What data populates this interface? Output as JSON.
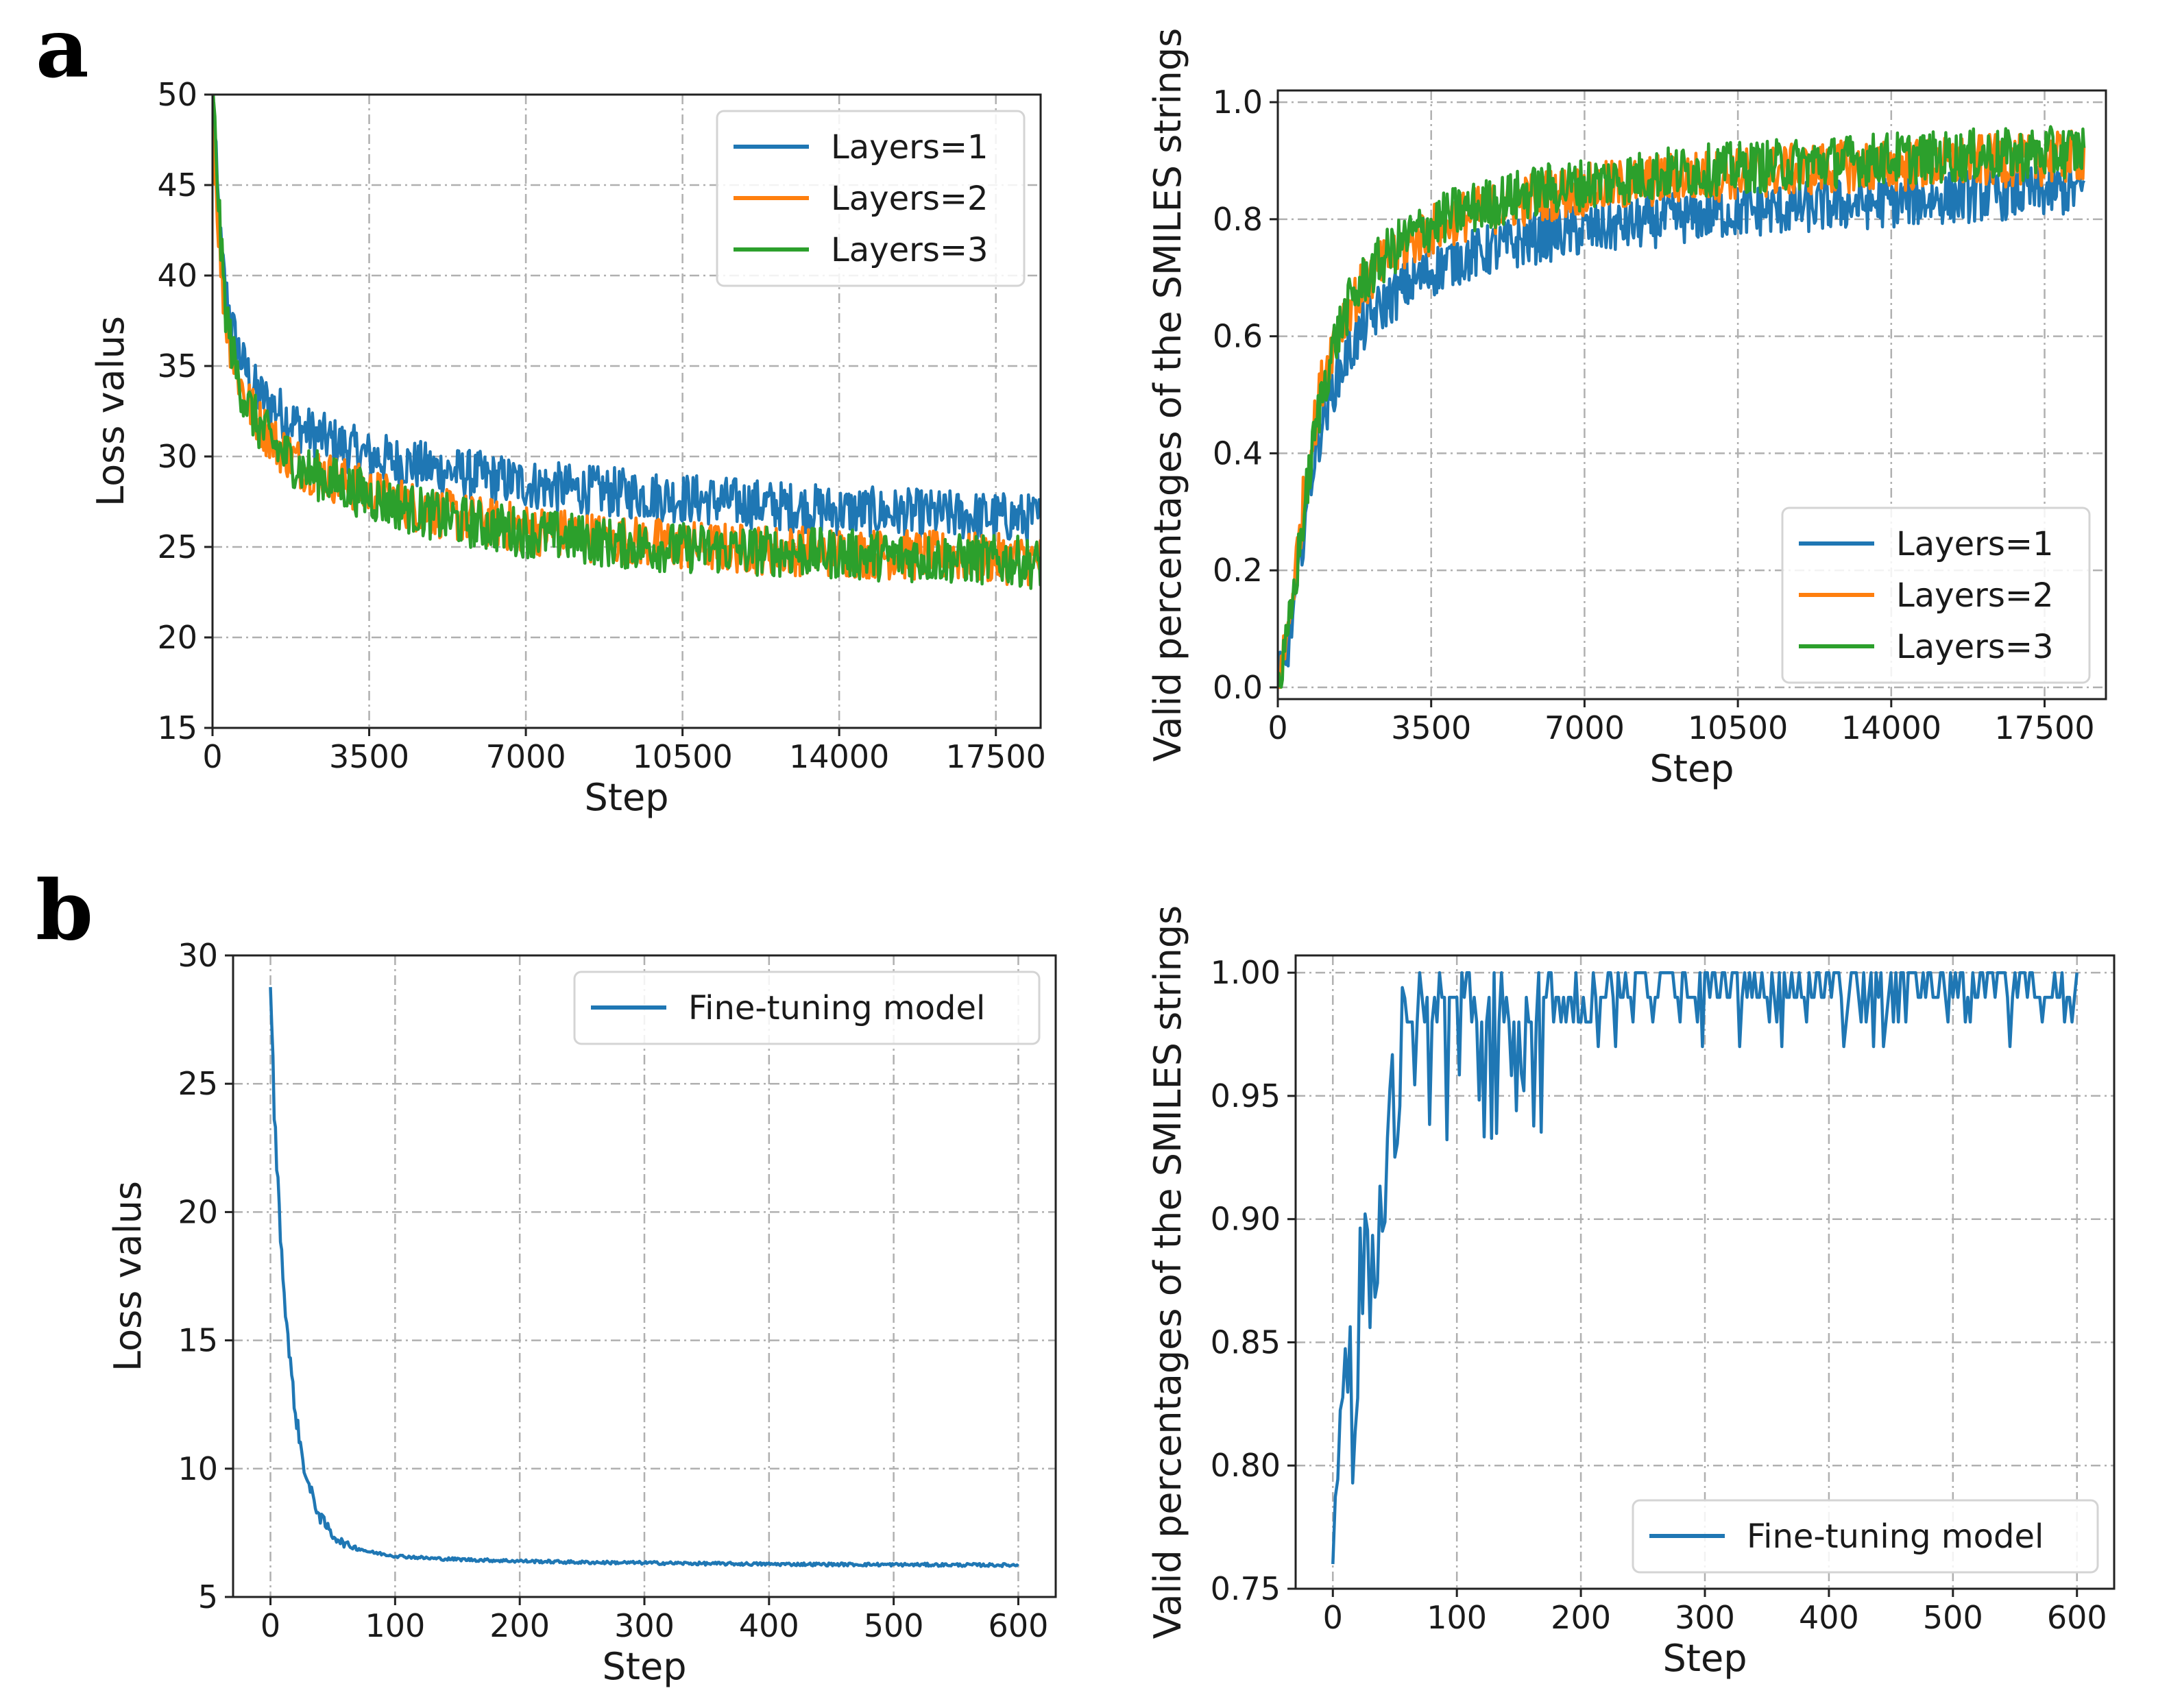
{
  "colors": {
    "layers1": "#1f77b4",
    "layers2": "#ff7f0e",
    "layers3": "#2ca02c",
    "finetune": "#1f77b4"
  },
  "panel_labels": {
    "a": "a",
    "b": "b"
  },
  "chart_data": [
    {
      "id": "a-loss",
      "type": "line",
      "title": "",
      "xlabel": "Step",
      "ylabel": "Loss valus",
      "xlim": [
        0,
        18500
      ],
      "ylim": [
        15,
        50
      ],
      "xticks": [
        0,
        3500,
        7000,
        10500,
        14000,
        17500
      ],
      "yticks": [
        15,
        20,
        25,
        30,
        35,
        40,
        45,
        50
      ],
      "legend_position": "top-right",
      "series": [
        {
          "name": "Layers=1",
          "color": "#1f77b4",
          "x": [
            0,
            100,
            200,
            300,
            500,
            700,
            1000,
            1500,
            2000,
            2500,
            3000,
            3500,
            4000,
            5000,
            6000,
            7000,
            8000,
            9000,
            10000,
            11000,
            12000,
            13000,
            14000,
            15000,
            16000,
            17000,
            18000,
            18600
          ],
          "y": [
            50,
            45,
            41,
            39,
            36.5,
            35,
            33.5,
            32.5,
            31.5,
            31,
            30.5,
            30,
            29.8,
            29.3,
            28.9,
            28.5,
            28.2,
            28.0,
            27.8,
            27.6,
            27.4,
            27.2,
            27.0,
            26.9,
            26.8,
            26.7,
            26.6,
            26.5
          ]
        },
        {
          "name": "Layers=2",
          "color": "#ff7f0e",
          "x": [
            0,
            100,
            200,
            300,
            500,
            700,
            1000,
            1500,
            2000,
            2500,
            3000,
            3500,
            4000,
            5000,
            6000,
            7000,
            8000,
            9000,
            10000,
            11000,
            12000,
            13000,
            14000,
            15000,
            16000,
            17000,
            18000,
            18600
          ],
          "y": [
            49,
            44,
            40,
            37.5,
            35,
            33.5,
            32,
            30.5,
            29.5,
            29,
            28.5,
            28,
            27.6,
            26.9,
            26.4,
            26.0,
            25.7,
            25.4,
            25.2,
            25.0,
            24.9,
            24.8,
            24.7,
            24.6,
            24.5,
            24.4,
            24.3,
            24.2
          ]
        },
        {
          "name": "Layers=3",
          "color": "#2ca02c",
          "x": [
            0,
            100,
            200,
            300,
            500,
            700,
            1000,
            1500,
            2000,
            2500,
            3000,
            3500,
            4000,
            5000,
            6000,
            7000,
            8000,
            9000,
            10000,
            11000,
            12000,
            13000,
            14000,
            15000,
            16000,
            17000,
            18000,
            18600
          ],
          "y": [
            50,
            46,
            41,
            38,
            35,
            33.3,
            31.8,
            30.3,
            29.3,
            28.8,
            28.3,
            27.8,
            27.4,
            26.7,
            26.2,
            25.8,
            25.5,
            25.2,
            25.0,
            24.9,
            24.8,
            24.7,
            24.6,
            24.5,
            24.4,
            24.3,
            24.2,
            24.0
          ]
        }
      ]
    },
    {
      "id": "a-valid",
      "type": "line",
      "title": "",
      "xlabel": "Step",
      "ylabel": "Valid percentages of the SMILES strings",
      "xlim": [
        0,
        18900
      ],
      "ylim": [
        -0.02,
        1.02
      ],
      "xticks": [
        0,
        3500,
        7000,
        10500,
        14000,
        17500
      ],
      "yticks": [
        0.0,
        0.2,
        0.4,
        0.6,
        0.8,
        1.0
      ],
      "ytick_labels": [
        "0.0",
        "0.2",
        "0.4",
        "0.6",
        "0.8",
        "1.0"
      ],
      "legend_position": "bottom-right",
      "series": [
        {
          "name": "Layers=1",
          "color": "#1f77b4",
          "x": [
            0,
            100,
            200,
            400,
            600,
            800,
            1000,
            1300,
            1600,
            2000,
            2500,
            3000,
            3500,
            4000,
            5000,
            6000,
            7000,
            8000,
            9000,
            10000,
            11000,
            12000,
            13000,
            14000,
            15000,
            16000,
            17000,
            18000,
            18400
          ],
          "y": [
            0.0,
            0.03,
            0.06,
            0.15,
            0.28,
            0.38,
            0.45,
            0.52,
            0.57,
            0.62,
            0.66,
            0.69,
            0.71,
            0.73,
            0.75,
            0.77,
            0.78,
            0.79,
            0.8,
            0.81,
            0.815,
            0.82,
            0.825,
            0.83,
            0.835,
            0.84,
            0.845,
            0.85,
            0.85
          ]
        },
        {
          "name": "Layers=2",
          "color": "#ff7f0e",
          "x": [
            0,
            100,
            200,
            400,
            600,
            800,
            1000,
            1300,
            1600,
            2000,
            2500,
            3000,
            3500,
            4000,
            5000,
            6000,
            7000,
            8000,
            9000,
            10000,
            11000,
            12000,
            13000,
            14000,
            15000,
            16000,
            17000,
            18000,
            18400
          ],
          "y": [
            0.0,
            0.04,
            0.08,
            0.2,
            0.33,
            0.43,
            0.52,
            0.6,
            0.65,
            0.69,
            0.73,
            0.76,
            0.78,
            0.8,
            0.82,
            0.84,
            0.85,
            0.86,
            0.87,
            0.875,
            0.88,
            0.885,
            0.89,
            0.89,
            0.895,
            0.9,
            0.9,
            0.905,
            0.91
          ]
        },
        {
          "name": "Layers=3",
          "color": "#2ca02c",
          "x": [
            0,
            100,
            200,
            400,
            600,
            800,
            1000,
            1300,
            1600,
            2000,
            2500,
            3000,
            3500,
            4000,
            5000,
            6000,
            7000,
            8000,
            9000,
            10000,
            11000,
            12000,
            13000,
            14000,
            15000,
            16000,
            17000,
            18000,
            18400
          ],
          "y": [
            0.0,
            0.03,
            0.07,
            0.18,
            0.3,
            0.41,
            0.5,
            0.59,
            0.65,
            0.7,
            0.74,
            0.77,
            0.79,
            0.81,
            0.83,
            0.85,
            0.86,
            0.87,
            0.88,
            0.885,
            0.89,
            0.895,
            0.9,
            0.905,
            0.905,
            0.91,
            0.91,
            0.915,
            0.92
          ]
        }
      ]
    },
    {
      "id": "b-loss",
      "type": "line",
      "title": "",
      "xlabel": "Step",
      "ylabel": "Loss valus",
      "xlim": [
        -30,
        630
      ],
      "ylim": [
        5,
        30
      ],
      "xticks": [
        0,
        100,
        200,
        300,
        400,
        500,
        600
      ],
      "yticks": [
        5,
        10,
        15,
        20,
        25,
        30
      ],
      "legend_position": "top-right",
      "series": [
        {
          "name": "Fine-tuning model",
          "color": "#1f77b4",
          "x": [
            0,
            3,
            6,
            10,
            15,
            20,
            25,
            30,
            40,
            50,
            60,
            80,
            100,
            130,
            160,
            200,
            250,
            300,
            350,
            400,
            450,
            500,
            550,
            600
          ],
          "y": [
            29,
            24,
            21,
            17.5,
            14.5,
            12.2,
            10.6,
            9.4,
            8.1,
            7.4,
            7.05,
            6.75,
            6.6,
            6.5,
            6.45,
            6.4,
            6.35,
            6.33,
            6.3,
            6.28,
            6.27,
            6.26,
            6.25,
            6.24
          ]
        }
      ]
    },
    {
      "id": "b-valid",
      "type": "line",
      "title": "",
      "xlabel": "Step",
      "ylabel": "Valid percentages of the SMILES strings",
      "xlim": [
        -30,
        630
      ],
      "ylim": [
        0.75,
        1.007
      ],
      "xticks": [
        0,
        100,
        200,
        300,
        400,
        500,
        600
      ],
      "yticks": [
        0.75,
        0.8,
        0.85,
        0.9,
        0.95,
        1.0
      ],
      "ytick_labels": [
        "0.75",
        "0.80",
        "0.85",
        "0.90",
        "0.95",
        "1.00"
      ],
      "legend_position": "bottom-right",
      "series": [
        {
          "name": "Fine-tuning model",
          "color": "#1f77b4",
          "x": [
            0,
            3,
            6,
            10,
            14,
            18,
            22,
            26,
            30,
            35,
            40,
            45,
            50,
            55,
            60,
            70,
            80,
            90,
            100,
            120,
            140,
            160,
            180,
            200,
            220,
            240,
            260,
            280,
            300,
            320,
            340,
            360,
            380,
            400,
            420,
            440,
            460,
            480,
            500,
            520,
            540,
            560,
            580,
            600
          ],
          "y": [
            0.76,
            0.82,
            0.84,
            0.82,
            0.86,
            0.78,
            0.88,
            0.9,
            0.87,
            0.91,
            0.89,
            0.93,
            0.94,
            0.96,
            0.97,
            0.98,
            0.97,
            0.98,
            0.99,
            0.98,
            0.985,
            0.98,
            0.99,
            0.985,
            0.99,
            0.995,
            0.99,
            0.995,
            0.99,
            0.995,
            0.99,
            1.0,
            0.99,
            0.995,
            1.0,
            0.99,
            0.995,
            1.0,
            0.99,
            0.995,
            1.0,
            0.99,
            0.995,
            0.99
          ]
        }
      ]
    }
  ]
}
